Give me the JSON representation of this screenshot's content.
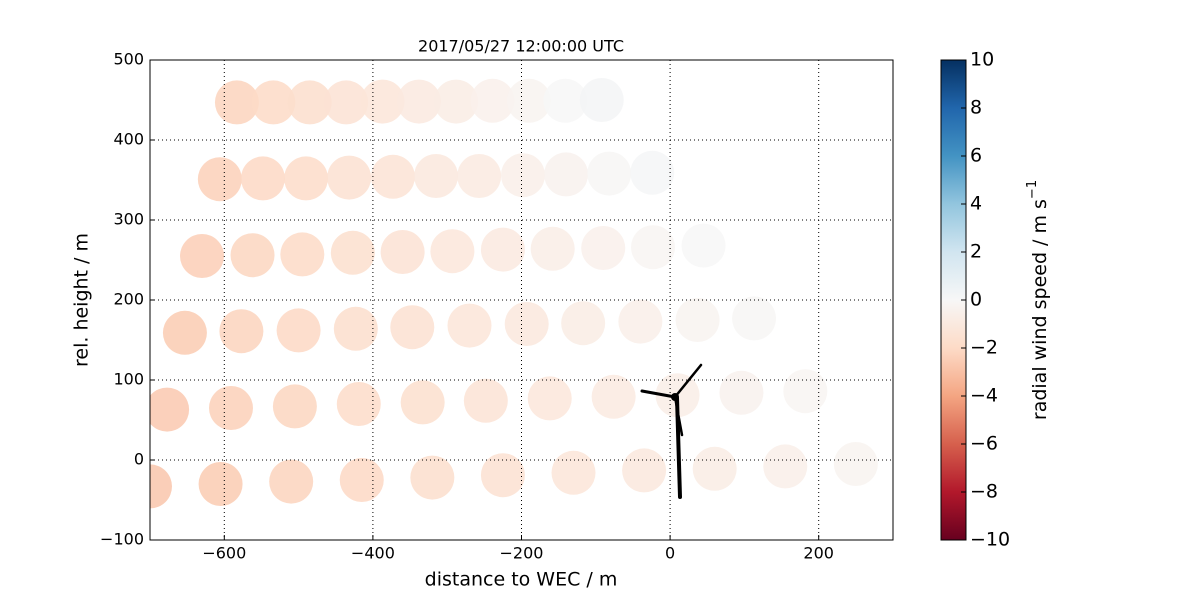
{
  "chart_data": {
    "type": "scatter",
    "title": "2017/05/27 12:00:00 UTC",
    "xlabel": "distance to WEC / m",
    "ylabel": "rel. height / m",
    "xlim": [
      -700,
      300
    ],
    "ylim": [
      -100,
      500
    ],
    "xticks": [
      {
        "value": -600,
        "label": "−600"
      },
      {
        "value": -400,
        "label": "−400"
      },
      {
        "value": -200,
        "label": "−200"
      },
      0,
      200
    ],
    "yticks": [
      {
        "value": -100,
        "label": "−100"
      },
      0,
      100,
      200,
      300,
      400,
      500
    ],
    "grid": true,
    "x": [
      -700,
      -677,
      -653,
      -630,
      -606,
      -583,
      -605,
      -591,
      -577,
      -562,
      -548,
      -534,
      -510,
      -505,
      -500,
      -495,
      -490,
      -485,
      -415,
      -419,
      -423,
      -427,
      -432,
      -436,
      -320,
      -333,
      -347,
      -360,
      -373,
      -387,
      -225,
      -248,
      -270,
      -293,
      -315,
      -338,
      -130,
      -162,
      -193,
      -225,
      -257,
      -288,
      -35,
      -76,
      -117,
      -158,
      -198,
      -239,
      60,
      10,
      -40,
      -90,
      -140,
      -190,
      155,
      96,
      37,
      -23,
      -82,
      -141,
      250,
      182,
      113,
      45,
      -24,
      -92
    ],
    "y": [
      -33,
      63,
      159,
      255,
      351,
      447,
      -30,
      65,
      161,
      256,
      352,
      447,
      -27,
      67,
      162,
      257,
      352,
      447,
      -25,
      70,
      164,
      259,
      353,
      447,
      -22,
      72,
      166,
      260,
      354,
      448,
      -19,
      74,
      168,
      261,
      355,
      448,
      -16,
      77,
      170,
      263,
      355,
      448,
      -13,
      79,
      171,
      264,
      356,
      449,
      -11,
      81,
      173,
      265,
      357,
      449,
      -8,
      84,
      175,
      266,
      358,
      449,
      -5,
      86,
      177,
      268,
      359,
      450
    ],
    "values": [
      -2.8,
      -2.7,
      -2.6,
      -2.5,
      -2.4,
      -2.3,
      -2.6,
      -2.4,
      -2.3,
      -2.2,
      -2.1,
      -2.0,
      -2.3,
      -2.2,
      -2.1,
      -2.0,
      -1.9,
      -1.8,
      -2.1,
      -1.9,
      -1.8,
      -1.7,
      -1.6,
      -1.5,
      -1.8,
      -1.7,
      -1.6,
      -1.5,
      -1.4,
      -1.3,
      -1.6,
      -1.4,
      -1.3,
      -1.2,
      -1.1,
      -1.0,
      -1.3,
      -1.2,
      -1.1,
      -1.0,
      -0.9,
      -0.8,
      -1.1,
      -0.9,
      -0.8,
      -0.7,
      -0.6,
      -0.5,
      -0.8,
      -0.7,
      -0.6,
      -0.5,
      -0.4,
      -0.3,
      -0.6,
      -0.4,
      -0.3,
      -0.2,
      -0.1,
      0.0,
      -0.3,
      -0.2,
      -0.1,
      0.0,
      0.1,
      0.2
    ],
    "colormap": [
      "#67001f",
      "#b2182b",
      "#d6604d",
      "#f4a582",
      "#fddbc7",
      "#f7f7f7",
      "#d1e5f0",
      "#92c5de",
      "#4393c3",
      "#2166ac",
      "#053061"
    ],
    "colorbar": {
      "label": "radial wind speed / m s",
      "label_sup": "−1",
      "clim": [
        -10,
        10
      ],
      "ticks": [
        {
          "value": -10,
          "label": "−10"
        },
        {
          "value": -8,
          "label": "−8"
        },
        {
          "value": -6,
          "label": "−6"
        },
        {
          "value": -4,
          "label": "−4"
        },
        {
          "value": -2,
          "label": "−2"
        },
        0,
        2,
        4,
        6,
        8,
        10
      ]
    }
  }
}
